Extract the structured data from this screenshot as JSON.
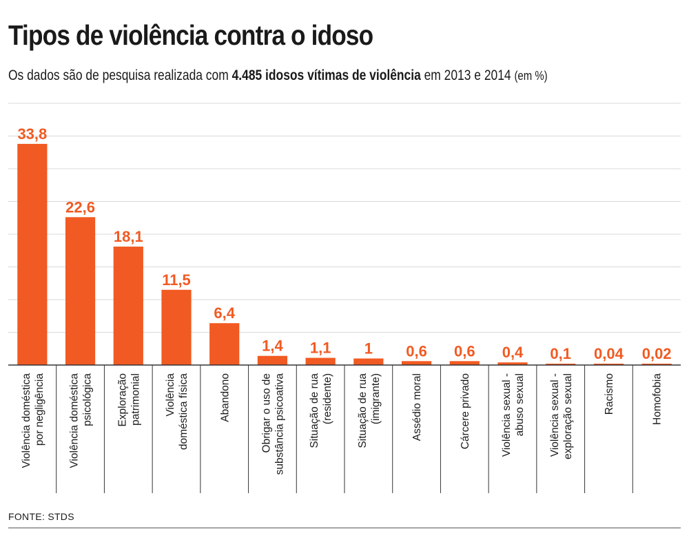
{
  "header": {
    "title": "Tipos de violência contra o idoso",
    "subtitle_prefix": "Os dados são de pesquisa realizada com",
    "subtitle_highlight": "4.485 idosos vítimas de violência",
    "subtitle_suffix": "em 2013 e 2014",
    "subtitle_unit": "(em %)"
  },
  "footer": {
    "source": "FONTE: STDS"
  },
  "colors": {
    "bar": "#f15a22",
    "value_label": "#f15a22",
    "grid": "#d9d9d9",
    "axis": "#333333",
    "text": "#1a1a1a"
  },
  "chart_data": {
    "type": "bar",
    "title": "Tipos de violência contra o idoso",
    "categories": [
      [
        "Violência doméstica",
        "por negligência"
      ],
      [
        "Violência doméstica",
        "psicológica"
      ],
      [
        "Exploração",
        "patrimonial"
      ],
      [
        "Violência",
        "doméstica física"
      ],
      [
        "Abandono"
      ],
      [
        "Obrigar o uso de",
        "substância psicoativa"
      ],
      [
        "Situação de rua",
        "(residente)"
      ],
      [
        "Situação de rua",
        "(imigrante)"
      ],
      [
        "Assédio moral"
      ],
      [
        "Cárcere privado"
      ],
      [
        "Violência sexual -",
        "abuso sexual"
      ],
      [
        "Violência sexual -",
        "exploração sexual"
      ],
      [
        "Racismo"
      ],
      [
        "Homofobia"
      ]
    ],
    "values": [
      33.8,
      22.6,
      18.1,
      11.5,
      6.4,
      1.4,
      1.1,
      1,
      0.6,
      0.6,
      0.4,
      0.1,
      0.04,
      0.02
    ],
    "value_labels": [
      "33,8",
      "22,6",
      "18,1",
      "11,5",
      "6,4",
      "1,4",
      "1,1",
      "1",
      "0,6",
      "0,6",
      "0,4",
      "0,1",
      "0,04",
      "0,02"
    ],
    "ylim": [
      0,
      40
    ],
    "grid": true,
    "legend": "none"
  }
}
